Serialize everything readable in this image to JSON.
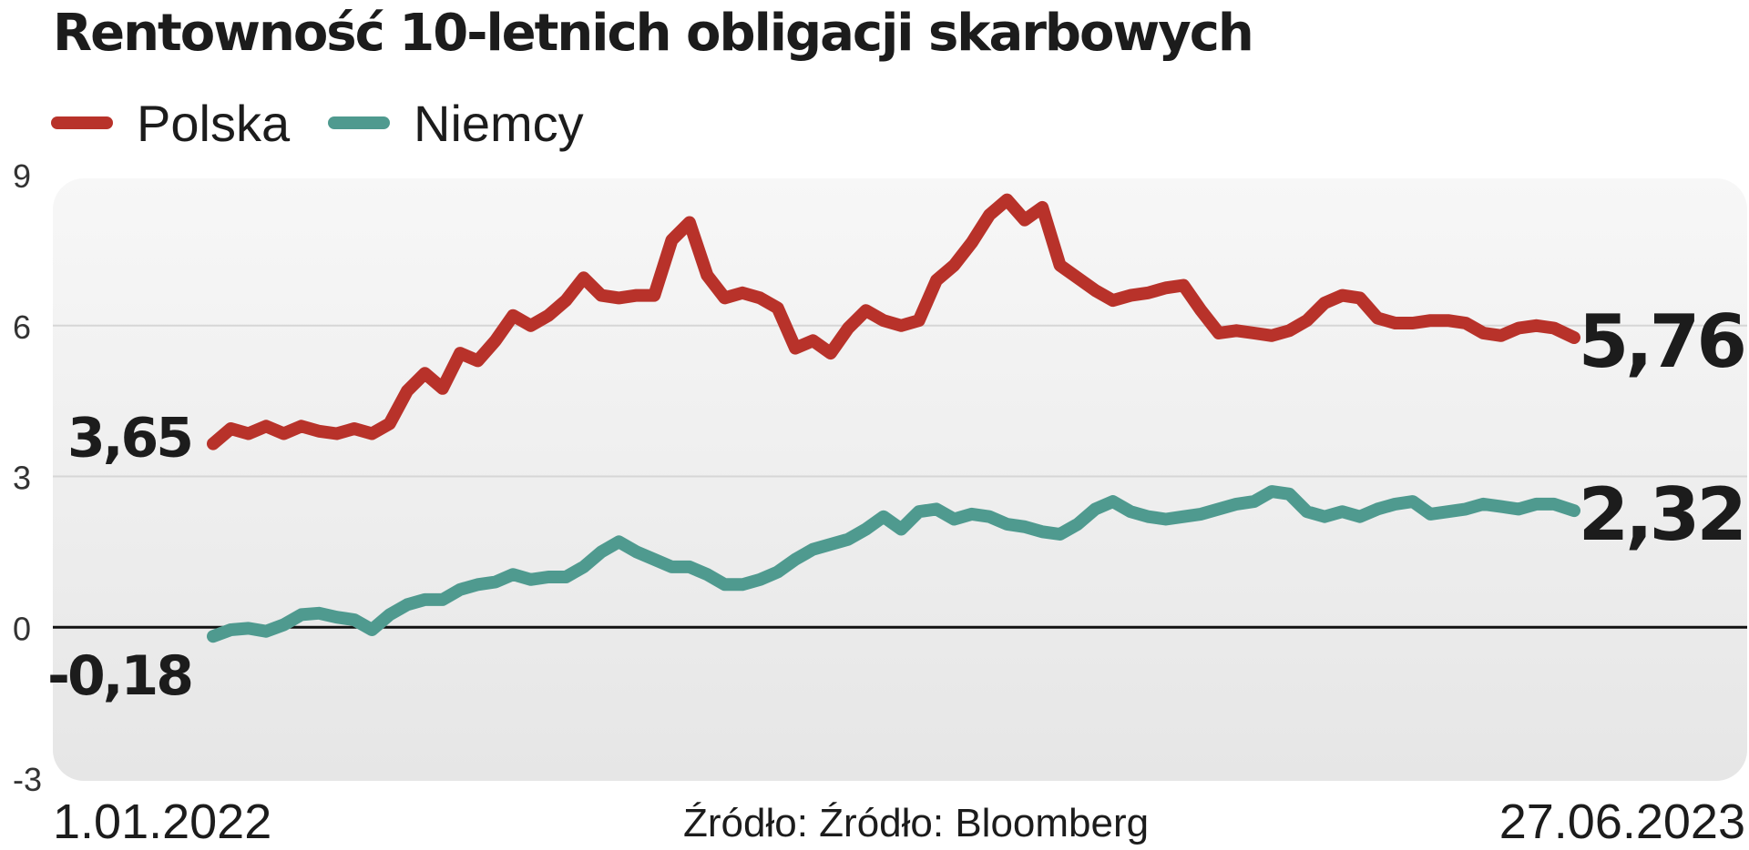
{
  "title": "Rentowność 10-letnich obligacji skarbowych",
  "legend": [
    {
      "label": "Polska",
      "color": "#b8322a"
    },
    {
      "label": "Niemcy",
      "color": "#4f9a8f"
    }
  ],
  "footer": {
    "date_start": "1.01.2022",
    "date_end": "27.06.2023",
    "source": "Źródło: Źródło: Bloomberg"
  },
  "chart_data": {
    "type": "line",
    "title": "Rentowność 10-letnich obligacji skarbowych",
    "xlabel": "",
    "ylabel": "",
    "x_range": [
      "1.01.2022",
      "27.06.2023"
    ],
    "ylim": [
      -3,
      9
    ],
    "yticks": [
      {
        "value": 9,
        "label": "9"
      },
      {
        "value": 6,
        "label": "6"
      },
      {
        "value": 3,
        "label": "3"
      },
      {
        "value": 0,
        "label": "0"
      },
      {
        "value": -3,
        "label": "-3"
      }
    ],
    "grid": true,
    "legend_position": "top-left",
    "zero_line": true,
    "series": [
      {
        "name": "Polska",
        "color": "#b8322a",
        "start_label": "3,65",
        "end_label": "5,76",
        "points": [
          [
            "2022-01-03",
            3.65
          ],
          [
            "2022-01-10",
            3.95
          ],
          [
            "2022-01-17",
            3.85
          ],
          [
            "2022-01-24",
            4.0
          ],
          [
            "2022-01-31",
            3.85
          ],
          [
            "2022-02-07",
            4.0
          ],
          [
            "2022-02-14",
            3.9
          ],
          [
            "2022-02-21",
            3.85
          ],
          [
            "2022-02-28",
            3.95
          ],
          [
            "2022-03-07",
            3.85
          ],
          [
            "2022-03-14",
            4.05
          ],
          [
            "2022-03-21",
            4.7
          ],
          [
            "2022-03-28",
            5.05
          ],
          [
            "2022-04-04",
            4.75
          ],
          [
            "2022-04-11",
            5.45
          ],
          [
            "2022-04-18",
            5.3
          ],
          [
            "2022-04-25",
            5.7
          ],
          [
            "2022-05-02",
            6.2
          ],
          [
            "2022-05-09",
            6.0
          ],
          [
            "2022-05-16",
            6.2
          ],
          [
            "2022-05-23",
            6.5
          ],
          [
            "2022-05-30",
            6.95
          ],
          [
            "2022-06-06",
            6.6
          ],
          [
            "2022-06-13",
            6.55
          ],
          [
            "2022-06-20",
            6.6
          ],
          [
            "2022-06-27",
            6.6
          ],
          [
            "2022-07-04",
            7.7
          ],
          [
            "2022-07-11",
            8.05
          ],
          [
            "2022-07-18",
            7.0
          ],
          [
            "2022-07-25",
            6.55
          ],
          [
            "2022-08-01",
            6.65
          ],
          [
            "2022-08-08",
            6.55
          ],
          [
            "2022-08-15",
            6.35
          ],
          [
            "2022-08-22",
            5.55
          ],
          [
            "2022-08-29",
            5.7
          ],
          [
            "2022-09-05",
            5.45
          ],
          [
            "2022-09-12",
            5.95
          ],
          [
            "2022-09-19",
            6.3
          ],
          [
            "2022-09-26",
            6.1
          ],
          [
            "2022-10-03",
            6.0
          ],
          [
            "2022-10-10",
            6.1
          ],
          [
            "2022-10-17",
            6.9
          ],
          [
            "2022-10-24",
            7.2
          ],
          [
            "2022-10-31",
            7.65
          ],
          [
            "2022-11-07",
            8.2
          ],
          [
            "2022-11-14",
            8.5
          ],
          [
            "2022-11-21",
            8.1
          ],
          [
            "2022-11-28",
            8.35
          ],
          [
            "2022-12-05",
            7.2
          ],
          [
            "2022-12-12",
            6.95
          ],
          [
            "2022-12-19",
            6.7
          ],
          [
            "2022-12-26",
            6.5
          ],
          [
            "2023-01-02",
            6.6
          ],
          [
            "2023-01-09",
            6.65
          ],
          [
            "2023-01-16",
            6.75
          ],
          [
            "2023-01-23",
            6.8
          ],
          [
            "2023-01-30",
            6.3
          ],
          [
            "2023-02-06",
            5.85
          ],
          [
            "2023-02-13",
            5.9
          ],
          [
            "2023-02-20",
            5.85
          ],
          [
            "2023-02-27",
            5.8
          ],
          [
            "2023-03-06",
            5.9
          ],
          [
            "2023-03-13",
            6.1
          ],
          [
            "2023-03-20",
            6.45
          ],
          [
            "2023-03-27",
            6.6
          ],
          [
            "2023-04-03",
            6.55
          ],
          [
            "2023-04-10",
            6.15
          ],
          [
            "2023-04-17",
            6.05
          ],
          [
            "2023-04-24",
            6.05
          ],
          [
            "2023-05-01",
            6.1
          ],
          [
            "2023-05-08",
            6.1
          ],
          [
            "2023-05-15",
            6.05
          ],
          [
            "2023-05-22",
            5.85
          ],
          [
            "2023-05-29",
            5.8
          ],
          [
            "2023-06-05",
            5.95
          ],
          [
            "2023-06-12",
            6.0
          ],
          [
            "2023-06-19",
            5.95
          ],
          [
            "2023-06-27",
            5.76
          ]
        ]
      },
      {
        "name": "Niemcy",
        "color": "#4f9a8f",
        "start_label": "-0,18",
        "end_label": "2,32",
        "points": [
          [
            "2022-01-03",
            -0.18
          ],
          [
            "2022-01-10",
            -0.05
          ],
          [
            "2022-01-17",
            -0.02
          ],
          [
            "2022-01-24",
            -0.08
          ],
          [
            "2022-01-31",
            0.05
          ],
          [
            "2022-02-07",
            0.25
          ],
          [
            "2022-02-14",
            0.28
          ],
          [
            "2022-02-21",
            0.2
          ],
          [
            "2022-02-28",
            0.15
          ],
          [
            "2022-03-07",
            -0.05
          ],
          [
            "2022-03-14",
            0.25
          ],
          [
            "2022-03-21",
            0.45
          ],
          [
            "2022-03-28",
            0.55
          ],
          [
            "2022-04-04",
            0.55
          ],
          [
            "2022-04-11",
            0.75
          ],
          [
            "2022-04-18",
            0.85
          ],
          [
            "2022-04-25",
            0.9
          ],
          [
            "2022-05-02",
            1.05
          ],
          [
            "2022-05-09",
            0.95
          ],
          [
            "2022-05-16",
            1.0
          ],
          [
            "2022-05-23",
            1.0
          ],
          [
            "2022-05-30",
            1.2
          ],
          [
            "2022-06-06",
            1.5
          ],
          [
            "2022-06-13",
            1.7
          ],
          [
            "2022-06-20",
            1.5
          ],
          [
            "2022-06-27",
            1.35
          ],
          [
            "2022-07-04",
            1.2
          ],
          [
            "2022-07-11",
            1.2
          ],
          [
            "2022-07-18",
            1.05
          ],
          [
            "2022-07-25",
            0.85
          ],
          [
            "2022-08-01",
            0.85
          ],
          [
            "2022-08-08",
            0.95
          ],
          [
            "2022-08-15",
            1.1
          ],
          [
            "2022-08-22",
            1.35
          ],
          [
            "2022-08-29",
            1.55
          ],
          [
            "2022-09-05",
            1.65
          ],
          [
            "2022-09-12",
            1.75
          ],
          [
            "2022-09-19",
            1.95
          ],
          [
            "2022-09-26",
            2.2
          ],
          [
            "2022-10-03",
            1.95
          ],
          [
            "2022-10-10",
            2.3
          ],
          [
            "2022-10-17",
            2.35
          ],
          [
            "2022-10-24",
            2.15
          ],
          [
            "2022-10-31",
            2.25
          ],
          [
            "2022-11-07",
            2.2
          ],
          [
            "2022-11-14",
            2.05
          ],
          [
            "2022-11-21",
            2.0
          ],
          [
            "2022-11-28",
            1.9
          ],
          [
            "2022-12-05",
            1.85
          ],
          [
            "2022-12-12",
            2.05
          ],
          [
            "2022-12-19",
            2.35
          ],
          [
            "2022-12-26",
            2.5
          ],
          [
            "2023-01-02",
            2.3
          ],
          [
            "2023-01-09",
            2.2
          ],
          [
            "2023-01-16",
            2.15
          ],
          [
            "2023-01-23",
            2.2
          ],
          [
            "2023-01-30",
            2.25
          ],
          [
            "2023-02-06",
            2.35
          ],
          [
            "2023-02-13",
            2.45
          ],
          [
            "2023-02-20",
            2.5
          ],
          [
            "2023-02-27",
            2.7
          ],
          [
            "2023-03-06",
            2.65
          ],
          [
            "2023-03-13",
            2.3
          ],
          [
            "2023-03-20",
            2.2
          ],
          [
            "2023-03-27",
            2.3
          ],
          [
            "2023-04-03",
            2.2
          ],
          [
            "2023-04-10",
            2.35
          ],
          [
            "2023-04-17",
            2.45
          ],
          [
            "2023-04-24",
            2.5
          ],
          [
            "2023-05-01",
            2.25
          ],
          [
            "2023-05-08",
            2.3
          ],
          [
            "2023-05-15",
            2.35
          ],
          [
            "2023-05-22",
            2.45
          ],
          [
            "2023-05-29",
            2.4
          ],
          [
            "2023-06-05",
            2.35
          ],
          [
            "2023-06-12",
            2.45
          ],
          [
            "2023-06-19",
            2.45
          ],
          [
            "2023-06-27",
            2.32
          ]
        ]
      }
    ]
  }
}
